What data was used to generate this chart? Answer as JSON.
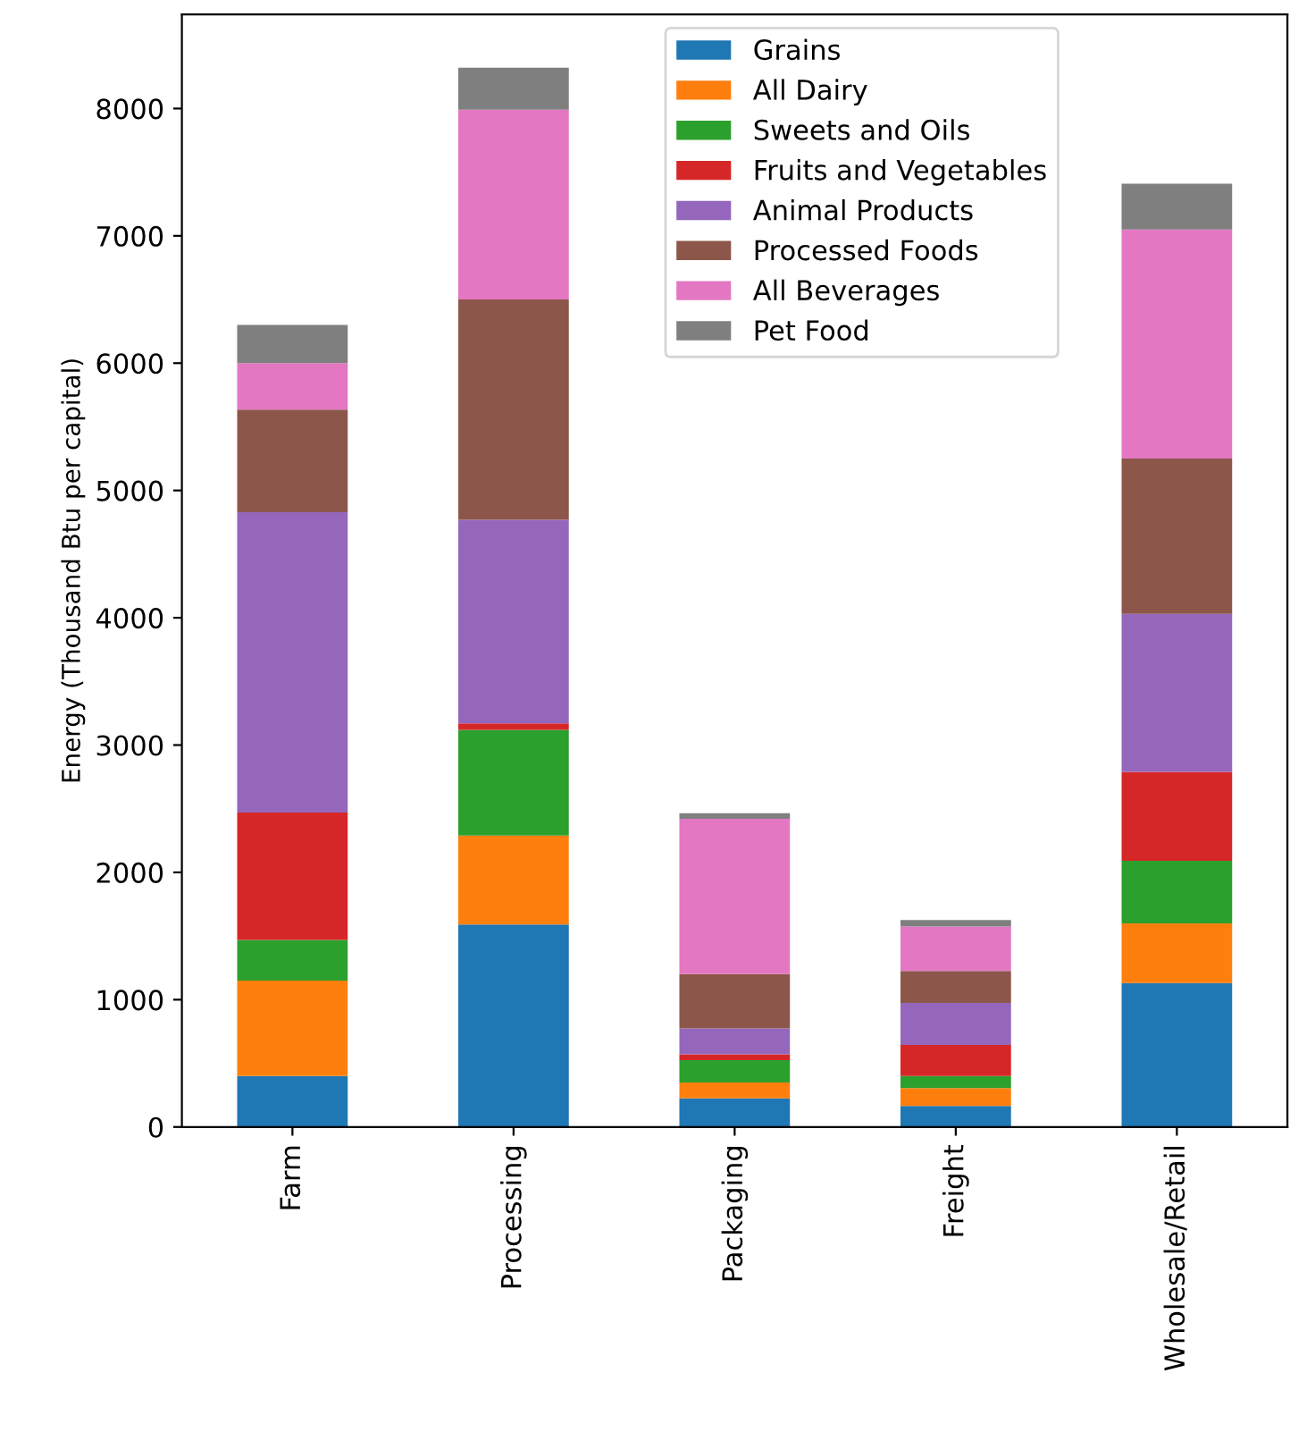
{
  "chart_data": {
    "type": "bar",
    "stacked": true,
    "ylabel": "Energy (Thousand Btu per capital)",
    "categories": [
      "Farm",
      "Processing",
      "Packaging",
      "Freight",
      "Wholesale/Retail"
    ],
    "series": [
      {
        "name": "Grains",
        "color": "#1f77b4",
        "values": [
          400,
          1590,
          225,
          165,
          1130
        ]
      },
      {
        "name": "All Dairy",
        "color": "#ff7f0e",
        "values": [
          750,
          700,
          125,
          140,
          470
        ]
      },
      {
        "name": "Sweets and Oils",
        "color": "#2ca02c",
        "values": [
          320,
          830,
          175,
          95,
          490
        ]
      },
      {
        "name": "Fruits and Vegetables",
        "color": "#d62728",
        "values": [
          1000,
          50,
          45,
          245,
          700
        ]
      },
      {
        "name": "Animal Products",
        "color": "#9467bd",
        "values": [
          2360,
          1600,
          205,
          330,
          1240
        ]
      },
      {
        "name": "Processed Foods",
        "color": "#8c564b",
        "values": [
          805,
          1730,
          425,
          250,
          1220
        ]
      },
      {
        "name": "All Beverages",
        "color": "#e377c2",
        "values": [
          365,
          1490,
          1220,
          350,
          1800
        ]
      },
      {
        "name": "Pet Food",
        "color": "#7f7f7f",
        "values": [
          300,
          330,
          45,
          50,
          360
        ]
      }
    ],
    "ylim": [
      0,
      8740
    ],
    "yticks": [
      0,
      1000,
      2000,
      3000,
      4000,
      5000,
      6000,
      7000,
      8000
    ],
    "legend": "top"
  }
}
